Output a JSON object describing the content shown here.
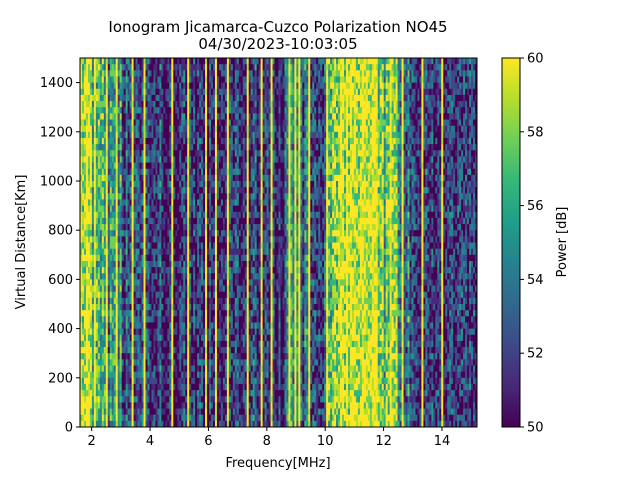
{
  "chart_data": {
    "type": "heatmap",
    "title": "Ionogram Jicamarca-Cuzco Polarization NO45",
    "subtitle": "04/30/2023-10:03:05",
    "xlabel": "Frequency[MHz]",
    "ylabel": "Virtual Distance[Km]",
    "xlim": [
      1.6,
      15.2
    ],
    "ylim": [
      0,
      1500
    ],
    "x_ticks": [
      2,
      4,
      6,
      8,
      10,
      12,
      14
    ],
    "y_ticks": [
      0,
      200,
      400,
      600,
      800,
      1000,
      1200,
      1400
    ],
    "colorbar": {
      "label": "Power [dB]",
      "range": [
        50,
        60
      ],
      "ticks": [
        50,
        52,
        54,
        56,
        58,
        60
      ],
      "colormap": "viridis",
      "colors": [
        "#440154",
        "#482878",
        "#3e4989",
        "#31688e",
        "#26828e",
        "#1f9e89",
        "#35b779",
        "#6ece58",
        "#b5de2b",
        "#fde725"
      ]
    },
    "grid": false,
    "band_levels": [
      {
        "from_mhz": 1.6,
        "to_mhz": 2.0,
        "mean_db": 59.5
      },
      {
        "from_mhz": 2.0,
        "to_mhz": 2.4,
        "mean_db": 57.5
      },
      {
        "from_mhz": 2.4,
        "to_mhz": 3.0,
        "mean_db": 55.0
      },
      {
        "from_mhz": 3.0,
        "to_mhz": 4.0,
        "mean_db": 52.5
      },
      {
        "from_mhz": 4.0,
        "to_mhz": 6.0,
        "mean_db": 51.5
      },
      {
        "from_mhz": 6.0,
        "to_mhz": 8.6,
        "mean_db": 51.5
      },
      {
        "from_mhz": 8.6,
        "to_mhz": 9.2,
        "mean_db": 55.0
      },
      {
        "from_mhz": 9.2,
        "to_mhz": 10.0,
        "mean_db": 53.0
      },
      {
        "from_mhz": 10.0,
        "to_mhz": 10.5,
        "mean_db": 57.0
      },
      {
        "from_mhz": 10.5,
        "to_mhz": 11.8,
        "mean_db": 59.8
      },
      {
        "from_mhz": 11.8,
        "to_mhz": 12.5,
        "mean_db": 57.0
      },
      {
        "from_mhz": 12.5,
        "to_mhz": 13.0,
        "mean_db": 54.0
      },
      {
        "from_mhz": 13.0,
        "to_mhz": 14.0,
        "mean_db": 52.0
      },
      {
        "from_mhz": 14.0,
        "to_mhz": 15.2,
        "mean_db": 51.0
      }
    ],
    "bright_lines_mhz": [
      2.1,
      2.5,
      2.8,
      3.4,
      3.8,
      4.7,
      5.3,
      5.9,
      6.2,
      6.6,
      7.3,
      7.8,
      8.1,
      8.75,
      8.95,
      9.1,
      9.4,
      10.0,
      12.2,
      12.6,
      13.3,
      13.95
    ]
  }
}
